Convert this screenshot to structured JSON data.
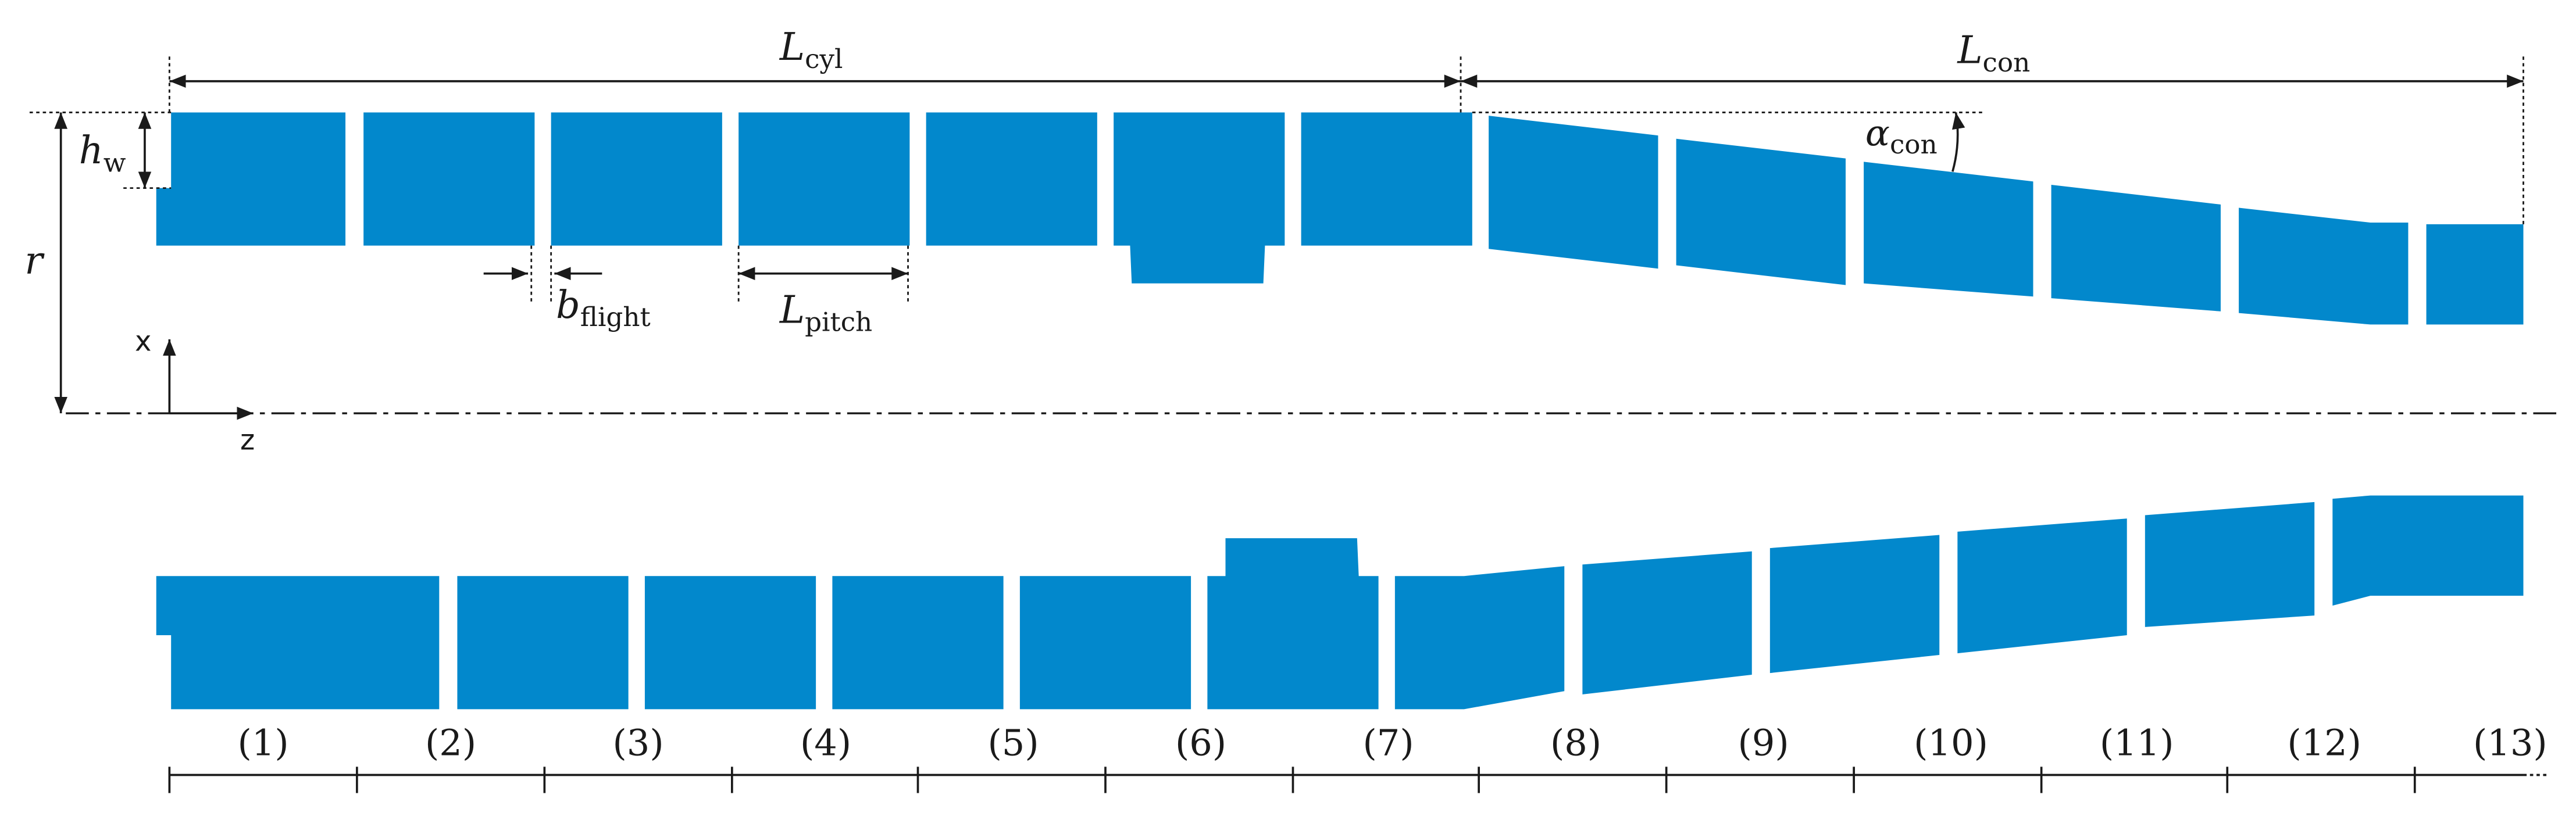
{
  "colors": {
    "segment": "#0288cc",
    "line": "#1a1a1a",
    "background": "#ffffff"
  },
  "dimensions": {
    "L_cyl": {
      "main": "L",
      "sub": "cyl"
    },
    "L_con": {
      "main": "L",
      "sub": "con"
    },
    "h_w": {
      "main": "h",
      "sub": "w"
    },
    "r": {
      "main": "r"
    },
    "b_flight": {
      "main": "b",
      "sub": "flight"
    },
    "L_pitch": {
      "main": "L",
      "sub": "pitch"
    },
    "alpha_con": {
      "main": "α",
      "sub": "con"
    }
  },
  "axes": {
    "x": "x",
    "z": "z"
  },
  "elements": [
    "(1)",
    "(2)",
    "(3)",
    "(4)",
    "(5)",
    "(6)",
    "(7)",
    "(8)",
    "(9)",
    "(10)",
    "(11)",
    "(12)",
    "(13)"
  ]
}
